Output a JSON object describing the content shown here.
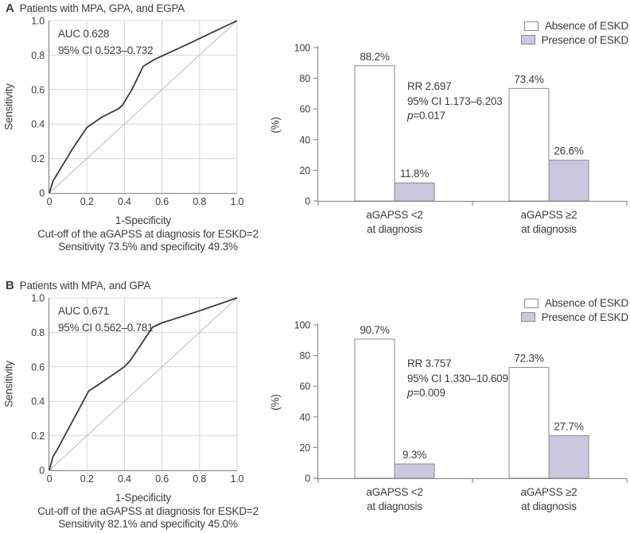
{
  "figure": {
    "panels": [
      {
        "label": "A",
        "title": "Patients with MPA, GPA, and EGPA"
      },
      {
        "label": "B",
        "title": "Patients with MPA, and GPA"
      }
    ],
    "colors": {
      "text": "#3c3c3c",
      "curve": "#3a3a3a",
      "grid": "#d6d6d6",
      "diagonal": "#c6c6c6",
      "axis": "#8f8f8f",
      "bar_border": "#8a8a8a",
      "absence_fill": "#ffffff",
      "presence_fill": "#cac7de"
    }
  },
  "chart_data": [
    {
      "id": "roc-A",
      "panel": "A",
      "type": "line",
      "title": "Patients with MPA, GPA, and EGPA",
      "xlabel": "1-Specificity",
      "ylabel": "Sensitivity",
      "xlim": [
        0,
        1.0
      ],
      "ylim": [
        0,
        1.0
      ],
      "xticks": [
        "0",
        "0.2",
        "0.4",
        "0.6",
        "0.8",
        "1.0"
      ],
      "yticks": [
        "0",
        "0.2",
        "0.4",
        "0.6",
        "0.8",
        "1.0"
      ],
      "grid": true,
      "reference_diagonal": true,
      "annotation": [
        "AUC 0.628",
        "95% CI 0.523–0.732"
      ],
      "caption": [
        "Cut-off of the aGAPSS at diagnosis for ESKD=2",
        "Sensitivity 73.5% and specificity 49.3%"
      ],
      "series": [
        {
          "name": "ROC curve",
          "points": [
            [
              0,
              0
            ],
            [
              0.02,
              0.07
            ],
            [
              0.12,
              0.25
            ],
            [
              0.2,
              0.38
            ],
            [
              0.28,
              0.44
            ],
            [
              0.37,
              0.49
            ],
            [
              0.39,
              0.51
            ],
            [
              0.44,
              0.6
            ],
            [
              0.5,
              0.735
            ],
            [
              0.56,
              0.775
            ],
            [
              0.75,
              0.87
            ],
            [
              1,
              1
            ]
          ]
        }
      ]
    },
    {
      "id": "bars-A",
      "panel": "A",
      "type": "bar",
      "ylabel": "(%)",
      "ylim": [
        0,
        100
      ],
      "yticks": [
        0,
        20,
        40,
        60,
        80,
        100
      ],
      "categories": [
        [
          "aGAPSS <2",
          "at diagnosis"
        ],
        [
          "aGAPSS ≥2",
          "at diagnosis"
        ]
      ],
      "legend_position": "top-right",
      "series": [
        {
          "name": "Absence of ESKD",
          "color": "#ffffff",
          "values": [
            88.2,
            73.4
          ],
          "labels": [
            "88.2%",
            "73.4%"
          ]
        },
        {
          "name": "Presence of ESKD",
          "color": "#cac7de",
          "values": [
            11.8,
            26.6
          ],
          "labels": [
            "11.8%",
            "26.6%"
          ]
        }
      ],
      "annotation": {
        "rr": "RR 2.697",
        "ci": "95% CI 1.173–6.203",
        "p_var": "p",
        "p_rest": "=0.017"
      }
    },
    {
      "id": "roc-B",
      "panel": "B",
      "type": "line",
      "title": "Patients with MPA, and GPA",
      "xlabel": "1-Specificity",
      "ylabel": "Sensitivity",
      "xlim": [
        0,
        1.0
      ],
      "ylim": [
        0,
        1.0
      ],
      "xticks": [
        "0",
        "0.2",
        "0.4",
        "0.6",
        "0.8",
        "1.0"
      ],
      "yticks": [
        "0",
        "0.2",
        "0.4",
        "0.6",
        "0.8",
        "1.0"
      ],
      "grid": true,
      "reference_diagonal": true,
      "annotation": [
        "AUC 0.671",
        "95% CI 0.562–0.781"
      ],
      "caption": [
        "Cut-off of the aGAPSS at diagnosis for ESKD=2",
        "Sensitivity 82.1% and specificity 45.0%"
      ],
      "series": [
        {
          "name": "ROC curve",
          "points": [
            [
              0,
              0
            ],
            [
              0.02,
              0.08
            ],
            [
              0.04,
              0.115
            ],
            [
              0.21,
              0.46
            ],
            [
              0.28,
              0.51
            ],
            [
              0.4,
              0.6
            ],
            [
              0.43,
              0.635
            ],
            [
              0.55,
              0.83
            ],
            [
              0.6,
              0.855
            ],
            [
              0.8,
              0.925
            ],
            [
              1,
              1
            ]
          ]
        }
      ]
    },
    {
      "id": "bars-B",
      "panel": "B",
      "type": "bar",
      "ylabel": "(%)",
      "ylim": [
        0,
        100
      ],
      "yticks": [
        0,
        20,
        40,
        60,
        80,
        100
      ],
      "categories": [
        [
          "aGAPSS <2",
          "at diagnosis"
        ],
        [
          "aGAPSS ≥2",
          "at diagnosis"
        ]
      ],
      "legend_position": "top-right",
      "series": [
        {
          "name": "Absence of ESKD",
          "color": "#ffffff",
          "values": [
            90.7,
            72.3
          ],
          "labels": [
            "90.7%",
            "72.3%"
          ]
        },
        {
          "name": "Presence of ESKD",
          "color": "#cac7de",
          "values": [
            9.3,
            27.7
          ],
          "labels": [
            "9.3%",
            "27.7%"
          ]
        }
      ],
      "annotation": {
        "rr": "RR 3.757",
        "ci": "95% CI 1.330–10.609",
        "p_var": "p",
        "p_rest": "=0.009"
      }
    }
  ]
}
